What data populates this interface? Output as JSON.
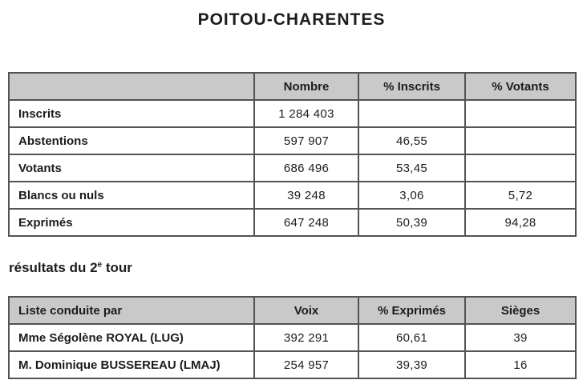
{
  "page": {
    "title": "POITOU-CHARENTES",
    "subtitle_prefix": "résultats du 2",
    "subtitle_sup": "e",
    "subtitle_suffix": " tour"
  },
  "colors": {
    "header_bg": "#c9c9c9",
    "border": "#535353",
    "text": "#1c1c1c",
    "background": "#ffffff"
  },
  "participation_table": {
    "headers": [
      "",
      "Nombre",
      "% Inscrits",
      "% Votants"
    ],
    "rows": [
      [
        "Inscrits",
        "1 284 403",
        "",
        ""
      ],
      [
        "Abstentions",
        "597 907",
        "46,55",
        ""
      ],
      [
        "Votants",
        "686 496",
        "53,45",
        ""
      ],
      [
        "Blancs ou nuls",
        "39 248",
        "3,06",
        "5,72"
      ],
      [
        "Exprimés",
        "647 248",
        "50,39",
        "94,28"
      ]
    ]
  },
  "results_table": {
    "headers": [
      "Liste conduite par",
      "Voix",
      "% Exprimés",
      "Sièges"
    ],
    "rows": [
      [
        "Mme Ségolène ROYAL  (LUG)",
        "392 291",
        "60,61",
        "39"
      ],
      [
        "M. Dominique BUSSEREAU  (LMAJ)",
        "254 957",
        "39,39",
        "16"
      ]
    ]
  }
}
